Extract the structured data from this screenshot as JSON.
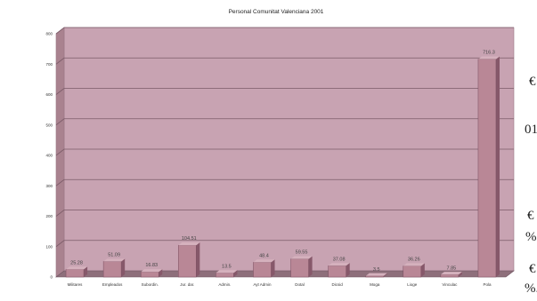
{
  "chart_data": {
    "type": "bar",
    "title": "Personal Comunitat Valenciana 2001",
    "categories": [
      "Militares",
      "Empleados",
      "Subordin.",
      "Jur. dar.",
      "Admin.",
      "Ayt Admin",
      "Dotal",
      "Dicsid",
      "Moga",
      "Lioge",
      "Vinculac",
      "Pola"
    ],
    "values": [
      25.28,
      51.09,
      16.83,
      104.51,
      13.5,
      48.4,
      59.55,
      37.08,
      3.5,
      36.26,
      7.85,
      716.3
    ],
    "value_labels": [
      "25.28",
      "51.09",
      "16.83",
      "104.51",
      "13.5",
      "48.4",
      "59.55",
      "37.08",
      "3.5",
      "36.26",
      "7.85",
      "716.3"
    ],
    "yticks": [
      "0",
      "100",
      "200",
      "300",
      "400",
      "500",
      "600",
      "700",
      "800"
    ],
    "ylim": [
      0,
      800
    ],
    "grid": true,
    "colors": {
      "wall": "#c8a3b2",
      "floor": "#8e6f7b",
      "bar_front": "#b98796",
      "bar_top": "#d5b1bd",
      "bar_side": "#86586a",
      "grid": "#7b5b68"
    }
  },
  "page_edge": {
    "fragments": [
      "€",
      "01",
      "€",
      "%",
      "€",
      "%."
    ]
  }
}
